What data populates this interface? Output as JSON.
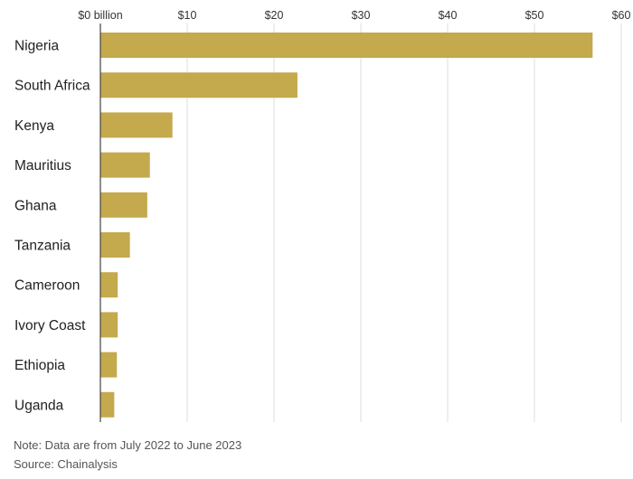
{
  "chart_data": {
    "type": "bar",
    "orientation": "horizontal",
    "categories": [
      "Nigeria",
      "South Africa",
      "Kenya",
      "Mauritius",
      "Ghana",
      "Tanzania",
      "Cameroon",
      "Ivory Coast",
      "Ethiopia",
      "Uganda"
    ],
    "values": [
      56.7,
      22.7,
      8.3,
      5.7,
      5.4,
      3.4,
      2.0,
      2.0,
      1.9,
      1.6
    ],
    "xlim": [
      0,
      60
    ],
    "xticks": [
      0,
      10,
      20,
      30,
      40,
      50,
      60
    ],
    "xtick_labels": [
      "$0 billion",
      "$10",
      "$20",
      "$30",
      "$40",
      "$50",
      "$60"
    ],
    "xaxis_position": "top",
    "grid": true,
    "bar_color": "#c4a94d",
    "title": "",
    "xlabel": "",
    "ylabel": ""
  },
  "footer": {
    "note": "Note: Data are from July 2022 to June 2023",
    "source": "Source: Chainalysis"
  }
}
